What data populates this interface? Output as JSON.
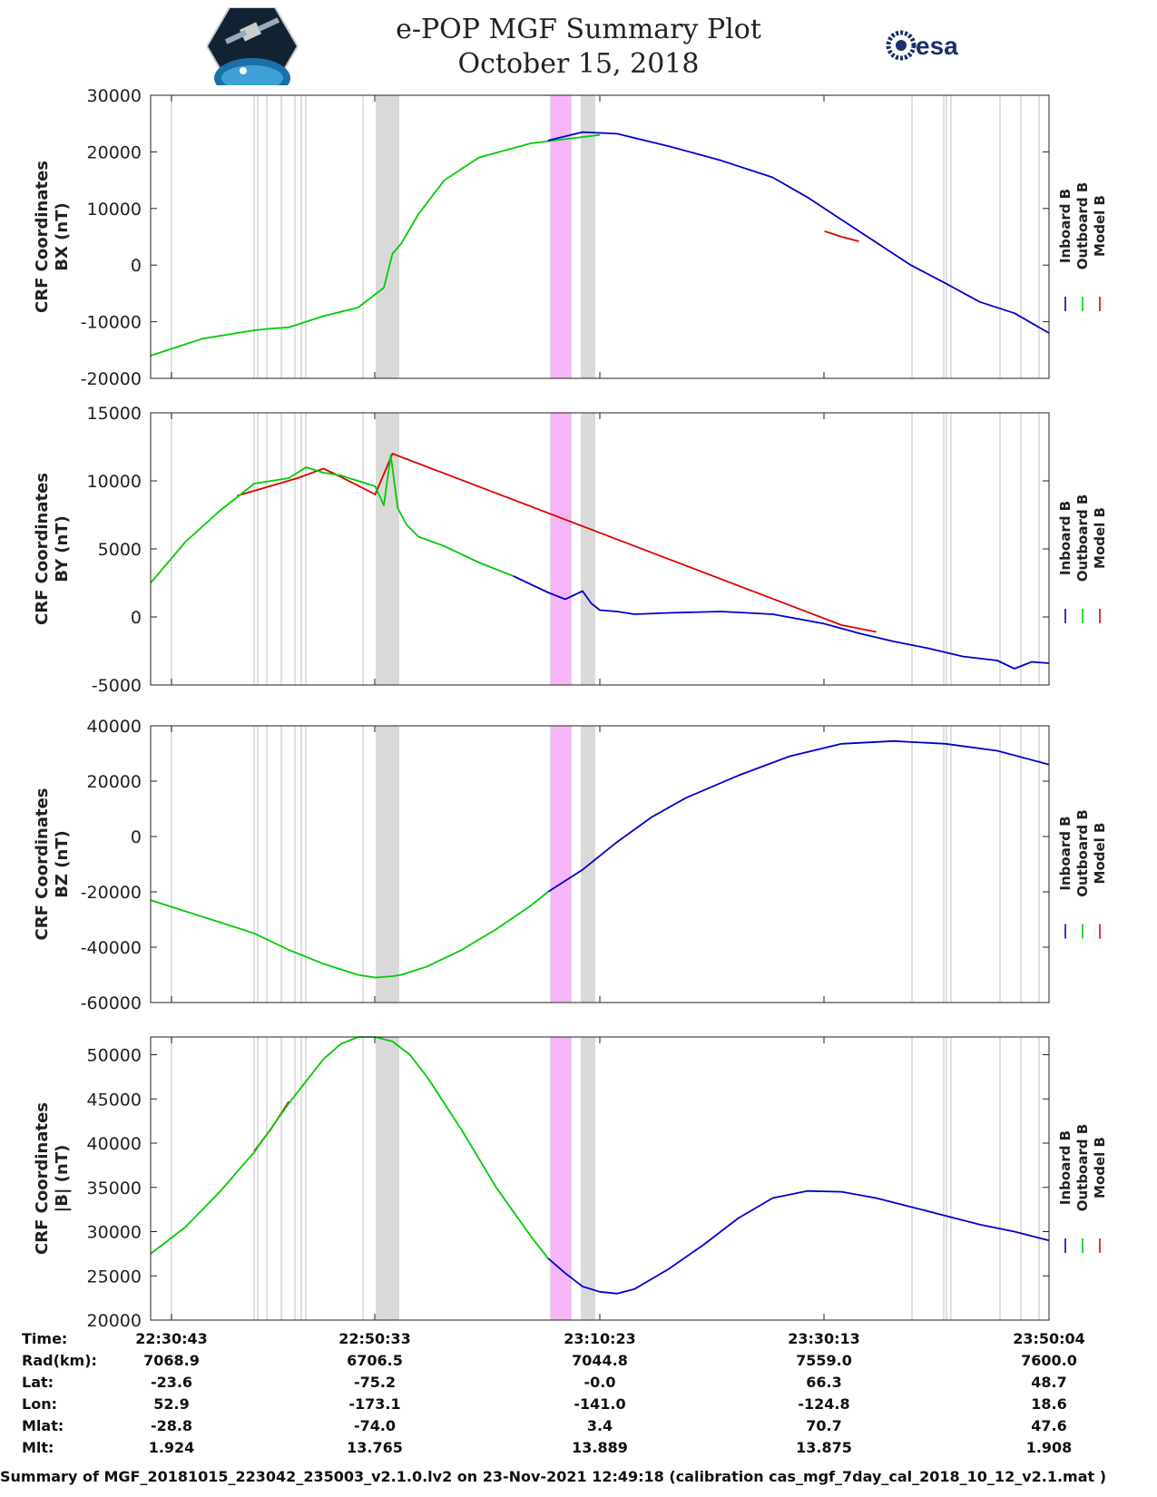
{
  "header": {
    "title_line1": "e-POP MGF Summary Plot",
    "title_line2": "October 15, 2018",
    "esa_text": "esa"
  },
  "footer": "Summary of MGF_20181015_223042_235003_v2.1.0.lv2 on 23-Nov-2021 12:49:18 (calibration cas_mgf_7day_cal_2018_10_12_v2.1.mat )",
  "colors": {
    "inboard": "#0000cc",
    "outboard": "#00cc00",
    "model": "#dd0000",
    "grey_band": "#d9d9d9",
    "magenta_band": "#f7b6f7"
  },
  "chart_data": [
    {
      "type": "line",
      "ylabel_line1": "CRF Coordinates",
      "ylabel_line2": "BX (nT)",
      "xlim": [
        0,
        5200
      ],
      "ylim": [
        -20000,
        30000
      ],
      "yticks": [
        -20000,
        -10000,
        0,
        10000,
        20000,
        30000
      ],
      "ytick_labels": [
        "-20000",
        "-10000",
        "0",
        "10000",
        "20000",
        "30000"
      ],
      "legend": [
        "Inboard B",
        "Outboard B",
        "Model B"
      ],
      "outboard": {
        "x": [
          0,
          300,
          600,
          700,
          800,
          900,
          1000,
          1200,
          1350,
          1400,
          1450,
          1550,
          1700,
          1900,
          2200,
          2600
        ],
        "y": [
          -16000,
          -13000,
          -11500,
          -11200,
          -11000,
          -10000,
          -9000,
          -7500,
          -4000,
          2000,
          3800,
          9000,
          15000,
          19000,
          21500,
          23000
        ]
      },
      "inboard": {
        "x": [
          2300,
          2500,
          2700,
          3000,
          3300,
          3600,
          3800,
          4000,
          4200,
          4400,
          4600,
          4800,
          5000,
          5200
        ],
        "y": [
          22000,
          23500,
          23200,
          21000,
          18500,
          15500,
          12000,
          8000,
          4000,
          0,
          -3200,
          -6500,
          -8500,
          -12000
        ]
      },
      "model": {
        "x": [
          3900,
          4000,
          4100
        ],
        "y": [
          6000,
          5000,
          4200
        ]
      }
    },
    {
      "type": "line",
      "ylabel_line1": "CRF Coordinates",
      "ylabel_line2": "BY (nT)",
      "xlim": [
        0,
        5200
      ],
      "ylim": [
        -5000,
        15000
      ],
      "yticks": [
        -5000,
        0,
        5000,
        10000,
        15000
      ],
      "ytick_labels": [
        "-5000",
        "0",
        "5000",
        "10000",
        "15000"
      ],
      "legend": [
        "Inboard B",
        "Outboard B",
        "Model B"
      ],
      "outboard": {
        "x": [
          0,
          200,
          400,
          600,
          650,
          800,
          900,
          1000,
          1100,
          1300,
          1350,
          1390,
          1430,
          1480,
          1550,
          1700,
          1900,
          2100
        ],
        "y": [
          2500,
          5500,
          7800,
          9800,
          9900,
          10200,
          11000,
          10600,
          10400,
          9600,
          8200,
          11900,
          8000,
          6800,
          5900,
          5200,
          4000,
          3000
        ]
      },
      "inboard": {
        "x": [
          2100,
          2300,
          2400,
          2500,
          2550,
          2600,
          2700,
          2800,
          3000,
          3300,
          3600,
          3900,
          4100,
          4300,
          4500,
          4700,
          4900,
          5000,
          5100,
          5200
        ],
        "y": [
          3000,
          1800,
          1300,
          1900,
          1000,
          500,
          400,
          200,
          300,
          400,
          200,
          -500,
          -1200,
          -1800,
          -2300,
          -2900,
          -3200,
          -3800,
          -3300,
          -3400
        ]
      },
      "model": {
        "x": [
          500,
          850,
          1000,
          1100,
          1300,
          1400,
          4000,
          4200
        ],
        "y": [
          8900,
          10200,
          10900,
          10300,
          9000,
          12000,
          -600,
          -1100
        ]
      }
    },
    {
      "type": "line",
      "ylabel_line1": "CRF Coordinates",
      "ylabel_line2": "BZ (nT)",
      "xlim": [
        0,
        5200
      ],
      "ylim": [
        -60000,
        40000
      ],
      "yticks": [
        -60000,
        -40000,
        -20000,
        0,
        20000,
        40000
      ],
      "ytick_labels": [
        "-60000",
        "-40000",
        "-20000",
        "0",
        "20000",
        "40000"
      ],
      "legend": [
        "Inboard B",
        "Outboard B",
        "Model B"
      ],
      "outboard": {
        "x": [
          0,
          200,
          400,
          600,
          800,
          1000,
          1200,
          1300,
          1400,
          1450,
          1600,
          1800,
          2000,
          2200,
          2300
        ],
        "y": [
          -23000,
          -27000,
          -31000,
          -35000,
          -41000,
          -46000,
          -50000,
          -51000,
          -50500,
          -50000,
          -47000,
          -41000,
          -33500,
          -25000,
          -20000
        ]
      },
      "inboard": {
        "x": [
          2300,
          2500,
          2700,
          2900,
          3100,
          3400,
          3700,
          4000,
          4300,
          4600,
          4900,
          5200
        ],
        "y": [
          -20000,
          -12000,
          -2000,
          7000,
          14000,
          22000,
          29000,
          33500,
          34500,
          33500,
          31000,
          26000
        ]
      },
      "model": {
        "x": [],
        "y": []
      }
    },
    {
      "type": "line",
      "ylabel_line1": "CRF Coordinates",
      "ylabel_line2": "|B| (nT)",
      "xlim": [
        0,
        5200
      ],
      "ylim": [
        20000,
        52000
      ],
      "yticks": [
        20000,
        25000,
        30000,
        35000,
        40000,
        45000,
        50000
      ],
      "ytick_labels": [
        "20000",
        "25000",
        "30000",
        "35000",
        "40000",
        "45000",
        "50000"
      ],
      "legend": [
        "Inboard B",
        "Outboard B",
        "Model B"
      ],
      "outboard": {
        "x": [
          0,
          200,
          400,
          600,
          800,
          1000,
          1100,
          1200,
          1300,
          1400,
          1500,
          1600,
          1800,
          2000,
          2200,
          2300
        ],
        "y": [
          27500,
          30500,
          34500,
          39000,
          44500,
          49500,
          51200,
          52000,
          52000,
          51500,
          50000,
          47500,
          41500,
          35000,
          29500,
          27000
        ]
      },
      "inboard": {
        "x": [
          2300,
          2400,
          2500,
          2600,
          2700,
          2800,
          3000,
          3200,
          3400,
          3600,
          3800,
          4000,
          4200,
          4400,
          4600,
          4800,
          5000,
          5200
        ],
        "y": [
          27000,
          25300,
          23800,
          23200,
          23000,
          23500,
          25800,
          28500,
          31500,
          33800,
          34600,
          34500,
          33800,
          32800,
          31800,
          30800,
          30000,
          29000
        ]
      },
      "model": {
        "x": [
          600,
          700,
          800
        ],
        "y": [
          39100,
          41700,
          44700
        ]
      }
    }
  ],
  "time_axis": {
    "row_labels": [
      "Time:",
      "Rad(km):",
      "Lat:",
      "Lon:",
      "Mlat:",
      "Mlt:"
    ],
    "columns": [
      {
        "values": [
          "22:30:43",
          "7068.9",
          "-23.6",
          "52.9",
          "-28.8",
          "1.924"
        ]
      },
      {
        "values": [
          "22:50:33",
          "6706.5",
          "-75.2",
          "-173.1",
          "-74.0",
          "13.765"
        ]
      },
      {
        "values": [
          "23:10:23",
          "7044.8",
          "-0.0",
          "-141.0",
          "3.4",
          "13.889"
        ]
      },
      {
        "values": [
          "23:30:13",
          "7559.0",
          "66.3",
          "-124.8",
          "70.7",
          "13.875"
        ]
      },
      {
        "values": [
          "23:50:04",
          "7600.0",
          "48.7",
          "18.6",
          "47.6",
          "1.908"
        ]
      }
    ]
  }
}
